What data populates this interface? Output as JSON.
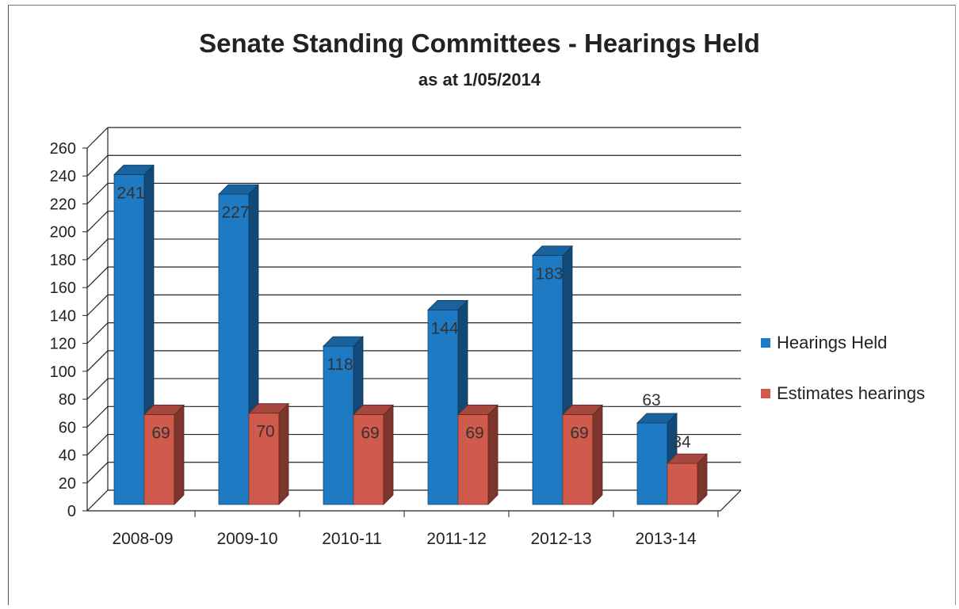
{
  "chart_data": {
    "type": "bar",
    "title": "Senate Standing Committees - Hearings Held",
    "subtitle": "as at 1/05/2014",
    "categories": [
      "2008-09",
      "2009-10",
      "2010-11",
      "2011-12",
      "2012-13",
      "2013-14"
    ],
    "series": [
      {
        "name": "Hearings Held",
        "values": [
          241,
          227,
          118,
          144,
          183,
          63
        ],
        "color": "#1f7ac4"
      },
      {
        "name": "Estimates hearings",
        "values": [
          69,
          70,
          69,
          69,
          69,
          34
        ],
        "color": "#d05a4c"
      }
    ],
    "data_labels": [
      [
        "241",
        "227",
        "118",
        "144",
        "183",
        "63"
      ],
      [
        "69",
        "70",
        "69",
        "69",
        "69",
        "34"
      ]
    ],
    "ylim": [
      0,
      260
    ],
    "yticks": [
      0,
      20,
      40,
      60,
      80,
      100,
      120,
      140,
      160,
      180,
      200,
      220,
      240,
      260
    ],
    "grid": true,
    "legend": "right",
    "style": "3d-clustered-column"
  }
}
